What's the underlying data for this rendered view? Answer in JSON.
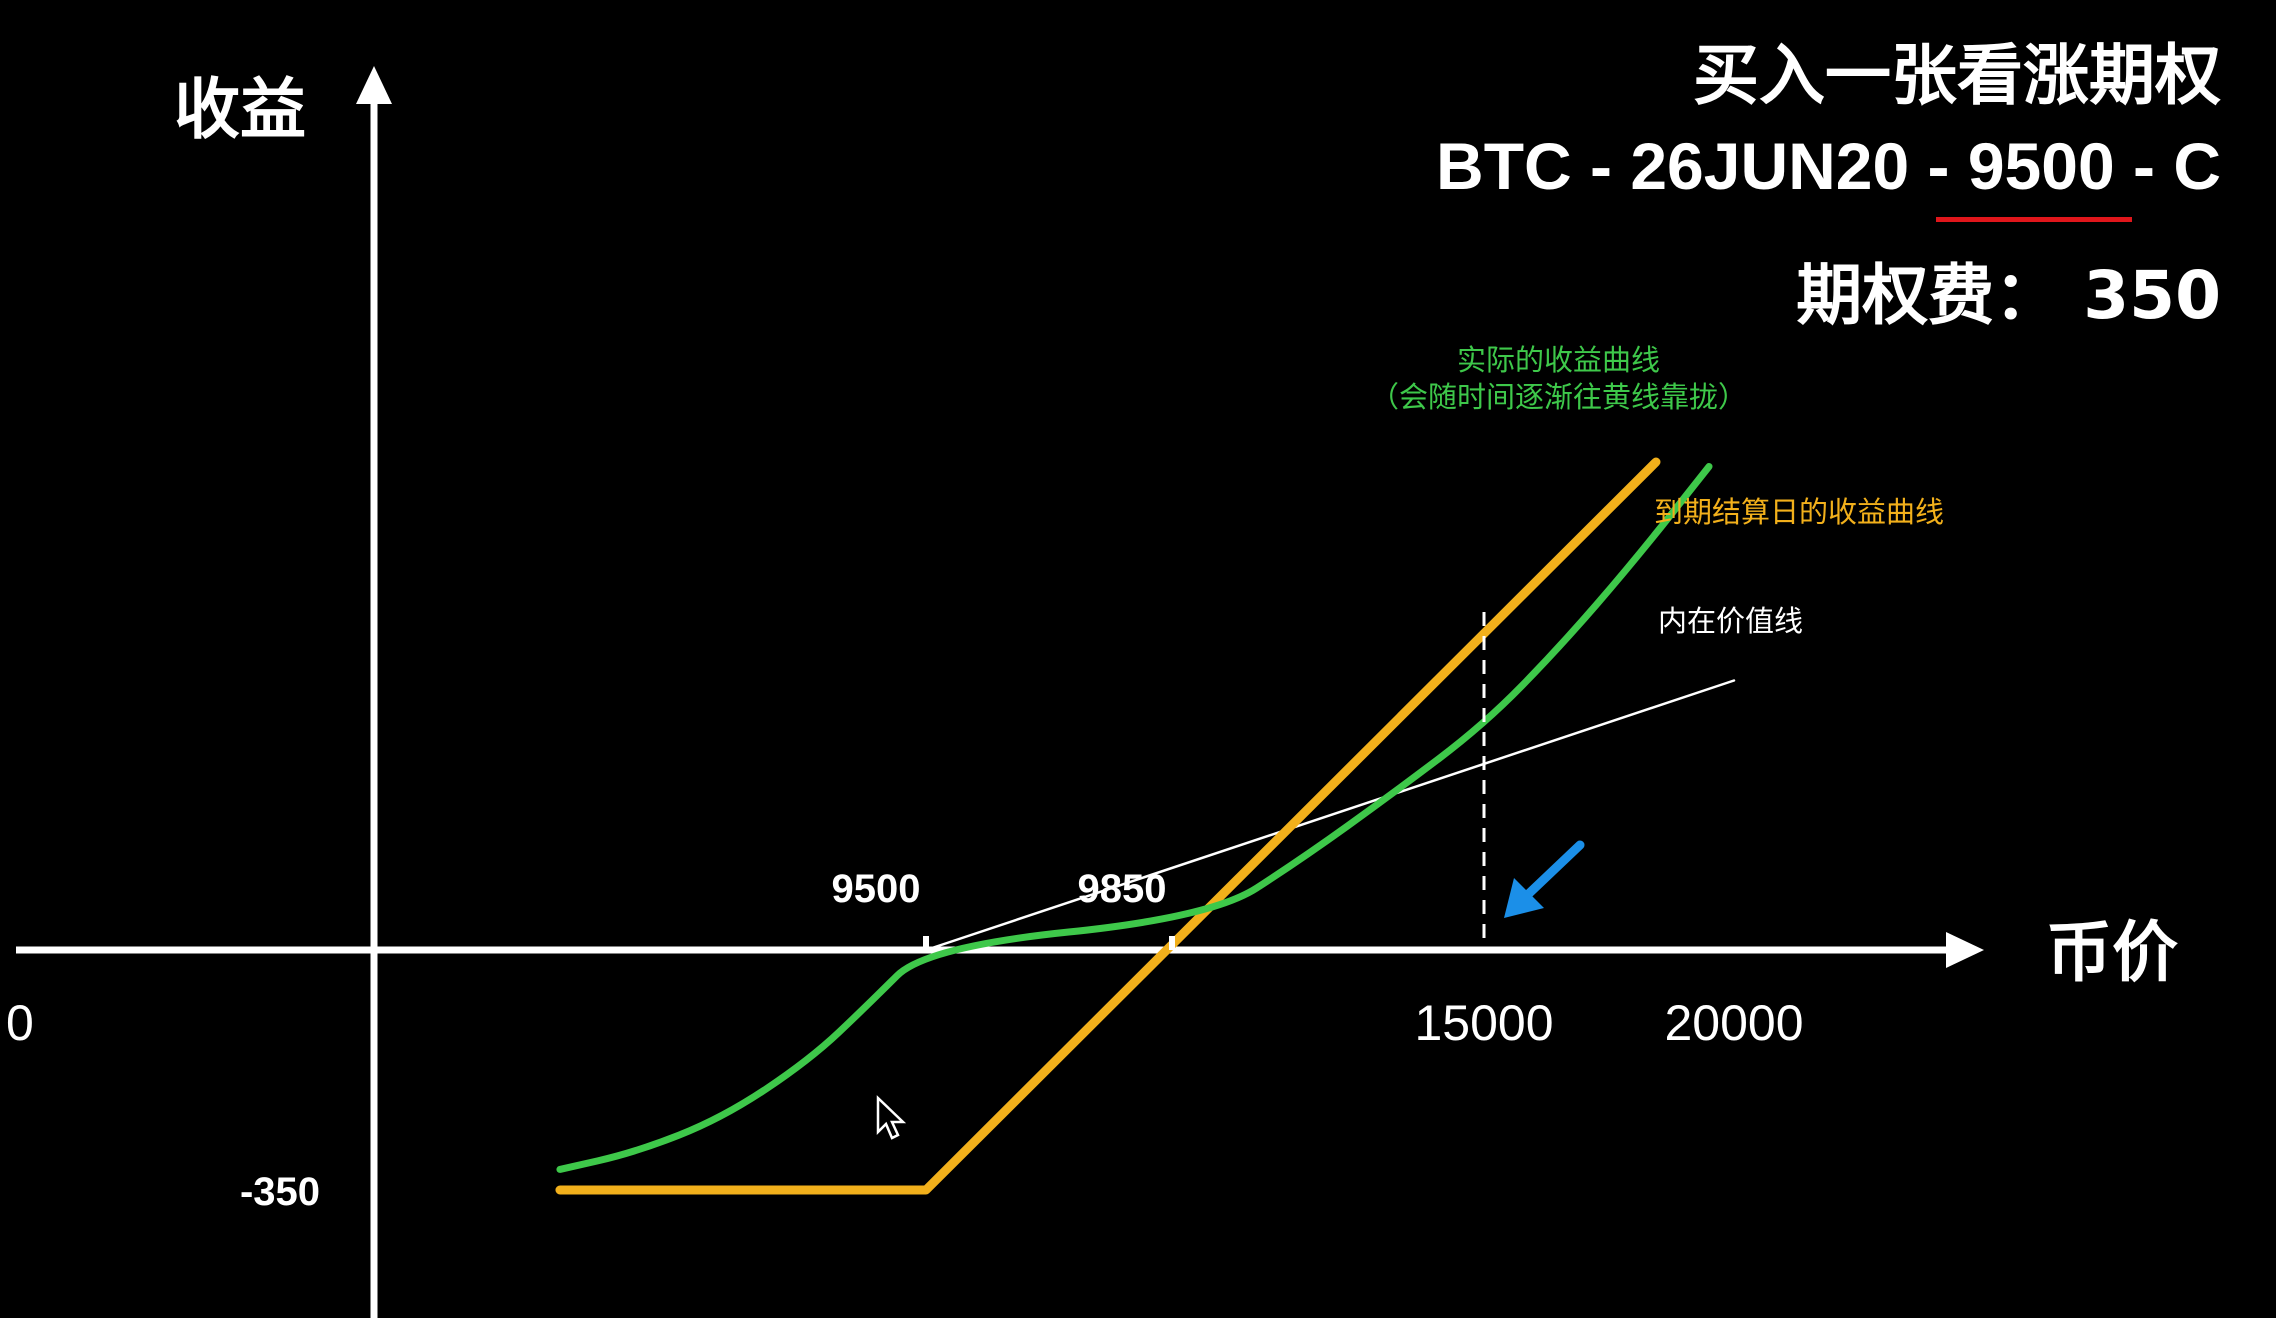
{
  "title": "买入一张看涨期权",
  "contract": {
    "prefix": "BTC - 26JUN20 - ",
    "strike": "9500",
    "suffix": " - C"
  },
  "premium_text": "期权费： 350",
  "annotations": {
    "actual_line1": "实际的收益曲线",
    "actual_line2": "（会随时间逐渐往黄线靠拢）",
    "expiry": "到期结算日的收益曲线",
    "intrinsic": "内在价值线"
  },
  "colors": {
    "actual": "#3ec84a",
    "expiry": "#f2b01b",
    "intrinsic": "#ffffff",
    "arrow": "#1b8fe8",
    "underline": "#e0161b"
  },
  "chart_data": {
    "type": "line",
    "xlabel": "币价",
    "ylabel": "收益",
    "x_origin_label": "0",
    "x_ticks": [
      {
        "value": 9500,
        "label": "9500",
        "position": "above"
      },
      {
        "value": 9850,
        "label": "9850",
        "position": "above"
      },
      {
        "value": 15000,
        "label": "15000",
        "position": "below"
      },
      {
        "value": 20000,
        "label": "20000",
        "position": "below"
      }
    ],
    "y_ticks": [
      {
        "value": -350,
        "label": "-350"
      }
    ],
    "marker_price": 15000,
    "series": [
      {
        "name": "到期结算日的收益曲线",
        "key": "expiry",
        "points": [
          [
            3200,
            -350
          ],
          [
            9500,
            -350
          ],
          [
            20000,
            10150
          ]
        ]
      },
      {
        "name": "实际的收益曲线",
        "key": "actual",
        "points": [
          [
            3200,
            -320
          ],
          [
            4500,
            -295
          ],
          [
            6000,
            -245
          ],
          [
            7500,
            -160
          ],
          [
            8500,
            -80
          ],
          [
            9500,
            20
          ],
          [
            10500,
            200
          ],
          [
            12000,
            560
          ],
          [
            13500,
            960
          ],
          [
            15000,
            1380
          ],
          [
            16500,
            1850
          ],
          [
            18000,
            2380
          ],
          [
            19500,
            2960
          ]
        ]
      },
      {
        "name": "内在价值线",
        "key": "intrinsic",
        "points": [
          [
            9500,
            0
          ],
          [
            20000,
            1650
          ]
        ]
      }
    ]
  }
}
